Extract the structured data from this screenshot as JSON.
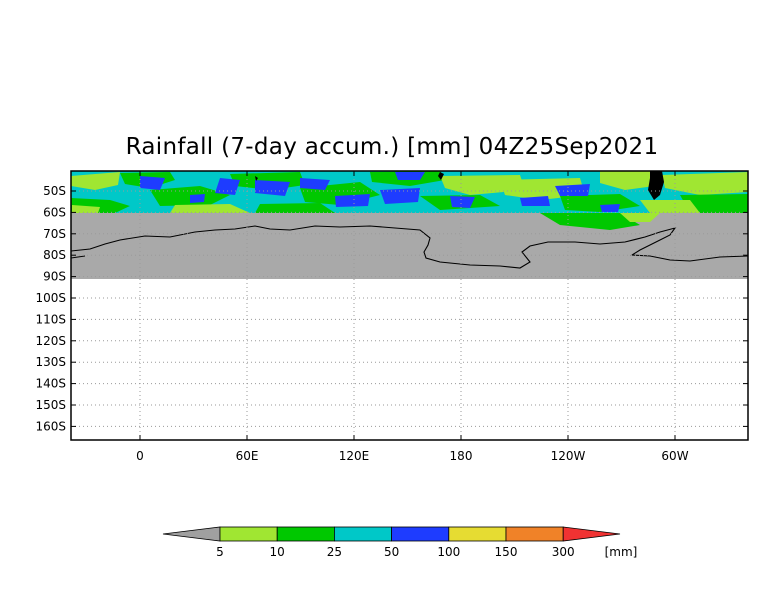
{
  "title": "Rainfall (7-day accum.) [mm] 04Z25Sep2021",
  "map": {
    "lat_labels": [
      "50S",
      "60S",
      "70S",
      "80S",
      "90S",
      "100S",
      "110S",
      "120S",
      "130S",
      "140S",
      "150S",
      "160S"
    ],
    "lon_labels": [
      "0",
      "60E",
      "120E",
      "180",
      "120W",
      "60W"
    ],
    "land_color": "#a9a9a9",
    "ocean_color": "#ffffff",
    "grid_color": "#9a9a9a"
  },
  "colorbar": {
    "unit": "[mm]",
    "thresholds": [
      "5",
      "10",
      "25",
      "50",
      "100",
      "150",
      "300"
    ],
    "colors": [
      "#a0a0a0",
      "#a0e632",
      "#00c800",
      "#00c8c8",
      "#1e3cff",
      "#e6dc32",
      "#f08228",
      "#f03232"
    ]
  }
}
